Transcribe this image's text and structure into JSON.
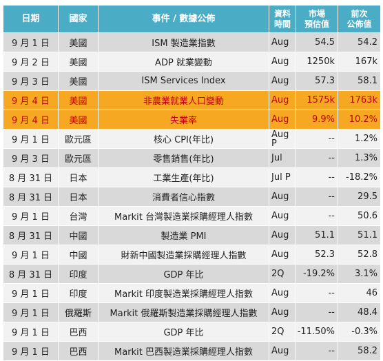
{
  "header": {
    "date": "日期",
    "country": "國家",
    "event": "事件 / 數據公佈",
    "period_l1": "資料",
    "period_l2": "時間",
    "forecast_l1": "市場",
    "forecast_l2": "預估值",
    "previous_l1": "前次",
    "previous_l2": "公佈值"
  },
  "colors": {
    "header_bg": "#4bacc6",
    "row_dark": "#d9d9d9",
    "row_light": "#f2f2f2",
    "highlight_bg": "#f7a823",
    "highlight_text": "#c00000"
  },
  "rows": [
    {
      "date": "9 月 1 日",
      "country": "美國",
      "event": "ISM  製造業指數",
      "period": "Aug",
      "forecast": "54.5",
      "previous": "54.2",
      "highlight": false
    },
    {
      "date": "9 月 2 日",
      "country": "美國",
      "event": "ADP  就業變動",
      "period": "Aug",
      "forecast": "1250k",
      "previous": "167k",
      "highlight": false
    },
    {
      "date": "9 月 3 日",
      "country": "美國",
      "event": "ISM Services Index",
      "period": "Aug",
      "forecast": "57.3",
      "previous": "58.1",
      "highlight": false
    },
    {
      "date": "9 月 4 日",
      "country": "美國",
      "event": "非農業就業人口變動",
      "period": "Aug",
      "forecast": "1575k",
      "previous": "1763k",
      "highlight": true
    },
    {
      "date": "9 月 4 日",
      "country": "美國",
      "event": "失業率",
      "period": "Aug",
      "forecast": "9.9%",
      "previous": "10.2%",
      "highlight": true
    },
    {
      "date": "9 月 1 日",
      "country": "歐元區",
      "event": "核心 CPI(年比)",
      "period": "Aug P",
      "forecast": "--",
      "previous": "1.2%",
      "highlight": false
    },
    {
      "date": "9 月 3 日",
      "country": "歐元區",
      "event": "零售銷售(年比)",
      "period": "Jul",
      "forecast": "--",
      "previous": "1.3%",
      "highlight": false
    },
    {
      "date": "8 月 31 日",
      "country": "日本",
      "event": "工業生產(年比)",
      "period": "Jul P",
      "forecast": "--",
      "previous": "-18.2%",
      "highlight": false
    },
    {
      "date": "8 月 31 日",
      "country": "日本",
      "event": "消費者信心指數",
      "period": "Aug",
      "forecast": "--",
      "previous": "29.5",
      "highlight": false
    },
    {
      "date": "9 月 1 日",
      "country": "台灣",
      "event": "Markit 台灣製造業採購經理人指數",
      "period": "Aug",
      "forecast": "--",
      "previous": "50.6",
      "highlight": false
    },
    {
      "date": "8 月 31 日",
      "country": "中國",
      "event": "製造業 PMI",
      "period": "Aug",
      "forecast": "51.1",
      "previous": "51.1",
      "highlight": false
    },
    {
      "date": "9 月 1 日",
      "country": "中國",
      "event": "財新中國製造業採購經理人指數",
      "period": "Aug",
      "forecast": "52.3",
      "previous": "52.8",
      "highlight": false
    },
    {
      "date": "8 月 31 日",
      "country": "印度",
      "event": "GDP 年比",
      "period": "2Q",
      "forecast": "-19.2%",
      "previous": "3.1%",
      "highlight": false
    },
    {
      "date": "9 月 1 日",
      "country": "印度",
      "event": "Markit 印度製造業採購經理人指數",
      "period": "Aug",
      "forecast": "--",
      "previous": "46",
      "highlight": false
    },
    {
      "date": "9 月 1 日",
      "country": "俄羅斯",
      "event": "Markit 俄羅斯製造業採購經理人指數",
      "period": "Aug",
      "forecast": "--",
      "previous": "48.4",
      "highlight": false
    },
    {
      "date": "9 月 1 日",
      "country": "巴西",
      "event": "GDP 年比",
      "period": "2Q",
      "forecast": "-11.50%",
      "previous": "-0.3%",
      "highlight": false
    },
    {
      "date": "9 月 1 日",
      "country": "巴西",
      "event": "Markit 巴西製造業採購經理人指數",
      "period": "Aug",
      "forecast": "--",
      "previous": "58.2",
      "highlight": false
    }
  ]
}
